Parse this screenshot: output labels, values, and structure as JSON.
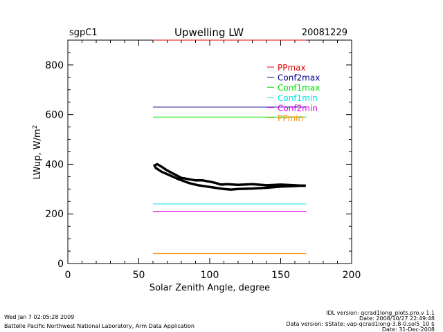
{
  "chart_data": {
    "type": "line",
    "site": "sgpC1",
    "title": "Upwelling LW",
    "date": "20081229",
    "xlabel": "Solar Zenith Angle, degree",
    "ylabel": "LWup, W/m",
    "ylabel_superscript": "2",
    "xlim": [
      0,
      200
    ],
    "ylim": [
      0,
      900
    ],
    "x_ticks": [
      0,
      50,
      100,
      150,
      200
    ],
    "x_tick_labels": [
      "0",
      "50",
      "100",
      "150",
      "200"
    ],
    "y_ticks": [
      0,
      200,
      400,
      600,
      800
    ],
    "y_tick_labels": [
      "0",
      "200",
      "400",
      "600",
      "800"
    ],
    "grid": false,
    "legend_placement": "top-right",
    "limits": [
      {
        "name": "PPmax",
        "value": 900,
        "x": [
          60,
          168
        ],
        "color": "#e00000"
      },
      {
        "name": "Conf2max",
        "value": 630,
        "x": [
          60,
          168
        ],
        "color": "#00008b"
      },
      {
        "name": "Conf1max",
        "value": 590,
        "x": [
          60,
          168
        ],
        "color": "#00e000"
      },
      {
        "name": "Conf1min",
        "value": 240,
        "x": [
          60,
          168
        ],
        "color": "#00e5e5"
      },
      {
        "name": "Conf2min",
        "value": 210,
        "x": [
          60,
          168
        ],
        "color": "#e000e0"
      },
      {
        "name": "PPmin",
        "value": 40,
        "x": [
          60,
          168
        ],
        "color": "#ff8c00"
      }
    ],
    "series": [
      {
        "color": "#000000",
        "x": [
          167,
          160,
          150,
          140,
          130,
          120,
          112,
          108,
          104,
          100,
          95,
          90,
          85,
          80,
          75,
          70,
          66,
          63,
          61,
          62,
          66,
          72,
          78,
          85,
          92,
          98,
          104,
          110,
          115,
          120,
          130,
          140,
          150,
          160,
          167
        ],
        "y": [
          313,
          315,
          318,
          315,
          320,
          317,
          320,
          318,
          325,
          330,
          335,
          335,
          340,
          345,
          360,
          375,
          390,
          400,
          395,
          385,
          370,
          355,
          340,
          325,
          315,
          310,
          305,
          300,
          298,
          300,
          302,
          305,
          310,
          312,
          314
        ]
      }
    ]
  },
  "footer": {
    "left_line1": "Wed Jan  7 02:05:28 2009",
    "left_line2": "Battelle Pacific Northwest National Laboratory, Arm Data Application",
    "right_line1": "IDL version: qcrad1long_plots.pro,v 1.1",
    "right_line2": "Date: 2008/10/27 22:49:48",
    "right_line3": "Data version: $State: vap-qcrad1long-3.8-0.sol5_10 $",
    "right_line4": "Date: 31-Dec-2008"
  }
}
